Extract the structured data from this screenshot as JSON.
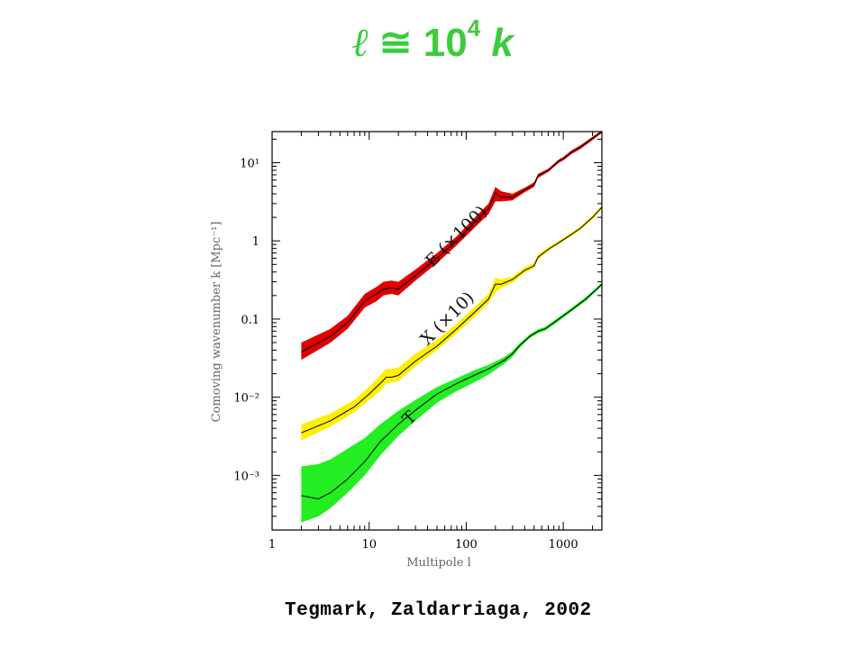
{
  "title": {
    "ell": "ℓ",
    "approx": "≅",
    "base": "10",
    "exponent": "4",
    "k": "k",
    "color": "#3ccc3c"
  },
  "citation": "Tegmark, Zaldarriaga, 2002",
  "chart_data": {
    "type": "area",
    "xlabel": "Multipole l",
    "ylabel": "Comoving wavenumber k [Mpc⁻¹]",
    "xscale": "log",
    "yscale": "log",
    "xlim": [
      1,
      2500
    ],
    "ylim": [
      0.0002,
      25
    ],
    "xticks": [
      {
        "value": 1,
        "label": "1"
      },
      {
        "value": 10,
        "label": "10"
      },
      {
        "value": 100,
        "label": "100"
      },
      {
        "value": 1000,
        "label": "1000"
      }
    ],
    "yticks": [
      {
        "value": 0.001,
        "label": "10⁻³"
      },
      {
        "value": 0.01,
        "label": "10⁻²"
      },
      {
        "value": 0.1,
        "label": "0.1"
      },
      {
        "value": 1,
        "label": "1"
      },
      {
        "value": 10,
        "label": "10¹"
      }
    ],
    "grid": false,
    "series": [
      {
        "name": "E (×100)",
        "color": "#e00000",
        "label_at": [
          45,
          0.45
        ],
        "label_rotate": -45,
        "x": [
          2,
          4,
          6,
          9,
          12,
          14,
          17,
          20,
          30,
          50,
          80,
          120,
          170,
          200,
          230,
          300,
          400,
          500,
          550,
          700,
          800,
          900,
          1000,
          1200,
          1500,
          2000,
          2500
        ],
        "center": [
          0.038,
          0.06,
          0.09,
          0.17,
          0.21,
          0.24,
          0.25,
          0.24,
          0.36,
          0.6,
          1.0,
          1.7,
          2.6,
          4.1,
          3.6,
          3.6,
          4.5,
          5.2,
          6.8,
          8.0,
          9.2,
          10.5,
          11.2,
          13.5,
          15.8,
          20.5,
          25.0
        ],
        "lower": [
          0.03,
          0.05,
          0.075,
          0.14,
          0.17,
          0.2,
          0.21,
          0.2,
          0.31,
          0.52,
          0.88,
          1.45,
          2.2,
          3.2,
          3.2,
          3.3,
          4.2,
          4.9,
          6.4,
          7.6,
          8.8,
          10.0,
          10.7,
          12.8,
          15.0,
          19.5,
          24.0
        ],
        "upper": [
          0.05,
          0.075,
          0.11,
          0.21,
          0.26,
          0.3,
          0.31,
          0.3,
          0.43,
          0.7,
          1.15,
          1.95,
          3.0,
          4.9,
          4.3,
          4.0,
          4.8,
          5.6,
          7.2,
          8.4,
          9.7,
          11.0,
          11.8,
          14.2,
          16.7,
          21.5,
          26.0
        ]
      },
      {
        "name": "X (×10)",
        "color": "#ffee00",
        "label_at": [
          40,
          0.045
        ],
        "label_rotate": -45,
        "x": [
          2,
          4,
          7,
          10,
          13,
          15,
          17,
          20,
          30,
          50,
          80,
          120,
          170,
          200,
          230,
          300,
          400,
          500,
          550,
          700,
          900,
          1200,
          1500,
          2000,
          2500
        ],
        "center": [
          0.0035,
          0.005,
          0.0075,
          0.011,
          0.015,
          0.018,
          0.018,
          0.019,
          0.029,
          0.045,
          0.075,
          0.12,
          0.18,
          0.28,
          0.28,
          0.32,
          0.42,
          0.48,
          0.62,
          0.78,
          0.95,
          1.2,
          1.45,
          2.0,
          2.7
        ],
        "lower": [
          0.0028,
          0.0042,
          0.0064,
          0.0092,
          0.012,
          0.015,
          0.0155,
          0.016,
          0.025,
          0.04,
          0.066,
          0.105,
          0.16,
          0.22,
          0.25,
          0.29,
          0.39,
          0.45,
          0.58,
          0.74,
          0.91,
          1.15,
          1.38,
          1.9,
          2.55
        ],
        "upper": [
          0.0045,
          0.0062,
          0.0092,
          0.0135,
          0.019,
          0.023,
          0.023,
          0.024,
          0.036,
          0.054,
          0.088,
          0.14,
          0.21,
          0.34,
          0.32,
          0.35,
          0.46,
          0.52,
          0.67,
          0.83,
          1.0,
          1.27,
          1.52,
          2.1,
          2.85
        ]
      },
      {
        "name": "T",
        "color": "#22ee22",
        "label_at": [
          26,
          0.0043
        ],
        "label_rotate": -45,
        "x": [
          2,
          3,
          4,
          6,
          9,
          13,
          20,
          30,
          50,
          80,
          120,
          170,
          250,
          300,
          350,
          450,
          550,
          650,
          800,
          1000,
          1300,
          1700,
          2200,
          2500
        ],
        "center": [
          0.00055,
          0.0005,
          0.0006,
          0.0009,
          0.0015,
          0.0027,
          0.0045,
          0.0068,
          0.011,
          0.015,
          0.019,
          0.023,
          0.03,
          0.036,
          0.045,
          0.06,
          0.07,
          0.075,
          0.09,
          0.11,
          0.14,
          0.18,
          0.24,
          0.28
        ],
        "lower": [
          0.00025,
          0.0003,
          0.00038,
          0.0006,
          0.001,
          0.0018,
          0.0032,
          0.005,
          0.0085,
          0.012,
          0.0155,
          0.0195,
          0.027,
          0.033,
          0.042,
          0.057,
          0.066,
          0.071,
          0.085,
          0.104,
          0.133,
          0.17,
          0.228,
          0.265
        ],
        "upper": [
          0.0013,
          0.0014,
          0.0016,
          0.0022,
          0.003,
          0.0045,
          0.0067,
          0.0092,
          0.0135,
          0.0175,
          0.022,
          0.026,
          0.033,
          0.039,
          0.048,
          0.063,
          0.074,
          0.079,
          0.095,
          0.116,
          0.147,
          0.19,
          0.252,
          0.295
        ]
      }
    ]
  }
}
